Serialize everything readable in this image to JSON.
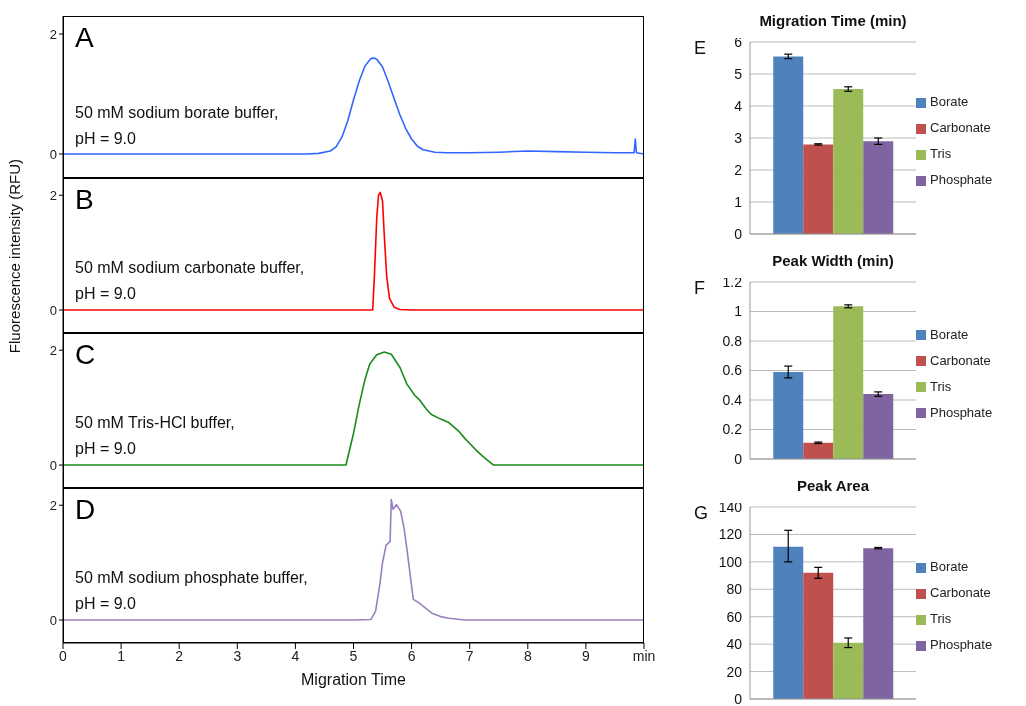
{
  "chart_data": [
    {
      "type": "line",
      "title": "A",
      "annotations": [
        "50 mM sodium borate buffer,",
        "pH = 9.0"
      ],
      "xlim": [
        0,
        10
      ],
      "ylim": [
        -0.4,
        2.3
      ],
      "yticks": [
        0,
        2
      ],
      "tick_labels": "y",
      "x": [
        0,
        1,
        2,
        3,
        4,
        4.2,
        4.4,
        4.6,
        4.7,
        4.8,
        4.9,
        5.0,
        5.1,
        5.2,
        5.3,
        5.35,
        5.4,
        5.5,
        5.6,
        5.7,
        5.8,
        5.9,
        6.0,
        6.1,
        6.2,
        6.4,
        6.6,
        7,
        7.5,
        8,
        8.5,
        9,
        9.5,
        9.83,
        9.85,
        9.87,
        10
      ],
      "series": [
        {
          "color": "#3366ff",
          "values": [
            0,
            0,
            0,
            0,
            0,
            0,
            0.01,
            0.05,
            0.12,
            0.28,
            0.55,
            0.9,
            1.22,
            1.47,
            1.59,
            1.6,
            1.58,
            1.45,
            1.2,
            0.92,
            0.65,
            0.42,
            0.25,
            0.13,
            0.07,
            0.03,
            0.02,
            0.02,
            0.03,
            0.05,
            0.04,
            0.03,
            0.02,
            0.02,
            0.25,
            0.02,
            0
          ]
        }
      ]
    },
    {
      "type": "line",
      "title": "B",
      "ylabel": "Fluorescence intensity (RFU)",
      "annotations": [
        "50 mM sodium carbonate buffer,",
        "pH = 9.0"
      ],
      "xlim": [
        0,
        10
      ],
      "ylim": [
        -0.4,
        2.3
      ],
      "yticks": [
        0,
        2
      ],
      "tick_labels": "y",
      "x": [
        0,
        2,
        4,
        5,
        5.33,
        5.36,
        5.4,
        5.43,
        5.46,
        5.5,
        5.53,
        5.57,
        5.62,
        5.7,
        5.8,
        6,
        8,
        10
      ],
      "series": [
        {
          "color": "#ff0000",
          "values": [
            0,
            0,
            0,
            0,
            0,
            0.6,
            1.6,
            2.0,
            2.05,
            1.9,
            1.3,
            0.6,
            0.2,
            0.05,
            0.01,
            0,
            0,
            0
          ]
        }
      ]
    },
    {
      "type": "line",
      "title": "C",
      "annotations": [
        "50 mM Tris-HCl buffer,",
        "pH = 9.0"
      ],
      "xlim": [
        0,
        10
      ],
      "ylim": [
        -0.4,
        2.3
      ],
      "yticks": [
        0,
        2
      ],
      "tick_labels": "y",
      "x": [
        0,
        4.87,
        5.0,
        5.1,
        5.2,
        5.28,
        5.4,
        5.53,
        5.65,
        5.8,
        5.92,
        6.05,
        6.14,
        6.25,
        6.34,
        6.5,
        6.64,
        6.8,
        6.92,
        7.1,
        7.25,
        7.41,
        10
      ],
      "series": [
        {
          "color": "#1a8a1a",
          "values": [
            0,
            0,
            0.55,
            1.06,
            1.5,
            1.76,
            1.92,
            1.97,
            1.93,
            1.7,
            1.41,
            1.22,
            1.13,
            0.98,
            0.88,
            0.8,
            0.74,
            0.6,
            0.46,
            0.27,
            0.13,
            0,
            0
          ]
        }
      ]
    },
    {
      "type": "line",
      "title": "D",
      "xlabel": "Migration Time",
      "annotations": [
        "50 mM sodium phosphate buffer,",
        "pH = 9.0"
      ],
      "xlim": [
        0,
        10
      ],
      "xticks": [
        0,
        1,
        2,
        3,
        4,
        5,
        6,
        7,
        8,
        9,
        {
          "value": 10,
          "label": "min"
        }
      ],
      "ylim": [
        -0.4,
        2.3
      ],
      "yticks": [
        0,
        2
      ],
      "x": [
        0,
        5,
        5.3,
        5.38,
        5.45,
        5.5,
        5.56,
        5.63,
        5.65,
        5.68,
        5.74,
        5.81,
        5.87,
        5.92,
        5.98,
        6.03,
        6.14,
        6.25,
        6.35,
        6.5,
        6.64,
        6.92,
        10
      ],
      "series": [
        {
          "color": "#9b7fc0",
          "values": [
            0,
            0,
            0.01,
            0.15,
            0.6,
            1.0,
            1.3,
            1.37,
            2.1,
            1.93,
            2.01,
            1.9,
            1.6,
            1.23,
            0.75,
            0.36,
            0.29,
            0.2,
            0.12,
            0.06,
            0.03,
            0,
            0
          ]
        }
      ]
    },
    {
      "type": "bar",
      "title": "Migration Time (min)",
      "annotations": [
        "E"
      ],
      "categories": [
        null
      ],
      "ylim": [
        0,
        6
      ],
      "yticks": [
        0,
        1,
        2,
        3,
        4,
        5,
        6
      ],
      "grid": "y",
      "legend": "right",
      "tick_labels": "y",
      "series": [
        {
          "name": "Borate",
          "color": "#4f81bd",
          "values": [
            5.55
          ],
          "errors": [
            0.07
          ]
        },
        {
          "name": "Carbonate",
          "color": "#c0504d",
          "values": [
            2.8
          ],
          "errors": [
            0.02
          ]
        },
        {
          "name": "Tris",
          "color": "#9bbb59",
          "values": [
            4.53
          ],
          "errors": [
            0.07
          ]
        },
        {
          "name": "Phosphate",
          "color": "#8064a2",
          "values": [
            2.9
          ],
          "errors": [
            0.1
          ]
        }
      ]
    },
    {
      "type": "bar",
      "title": "Peak Width (min)",
      "annotations": [
        "F"
      ],
      "categories": [
        null
      ],
      "ylim": [
        0,
        1.2
      ],
      "yticks": [
        0,
        0.2,
        0.4,
        0.6,
        0.8,
        1,
        1.2
      ],
      "grid": "y",
      "legend": "right",
      "tick_labels": "y",
      "series": [
        {
          "name": "Borate",
          "color": "#4f81bd",
          "values": [
            0.59
          ],
          "errors": [
            0.04
          ]
        },
        {
          "name": "Carbonate",
          "color": "#c0504d",
          "values": [
            0.11
          ],
          "errors": [
            0.005
          ]
        },
        {
          "name": "Tris",
          "color": "#9bbb59",
          "values": [
            1.035
          ],
          "errors": [
            0.01
          ]
        },
        {
          "name": "Phosphate",
          "color": "#8064a2",
          "values": [
            0.44
          ],
          "errors": [
            0.015
          ]
        }
      ]
    },
    {
      "type": "bar",
      "title": "Peak Area",
      "annotations": [
        "G"
      ],
      "categories": [
        null
      ],
      "ylim": [
        0,
        140
      ],
      "yticks": [
        0,
        20,
        40,
        60,
        80,
        100,
        120,
        140
      ],
      "grid": "y",
      "legend": "right",
      "tick_labels": "y",
      "series": [
        {
          "name": "Borate",
          "color": "#4f81bd",
          "values": [
            111
          ],
          "errors": [
            [
              100,
              123
            ]
          ]
        },
        {
          "name": "Carbonate",
          "color": "#c0504d",
          "values": [
            92
          ],
          "errors": [
            4
          ]
        },
        {
          "name": "Tris",
          "color": "#9bbb59",
          "values": [
            41
          ],
          "errors": [
            3.5
          ]
        },
        {
          "name": "Phosphate",
          "color": "#8064a2",
          "values": [
            110
          ],
          "errors": [
            0.5
          ]
        }
      ]
    }
  ]
}
